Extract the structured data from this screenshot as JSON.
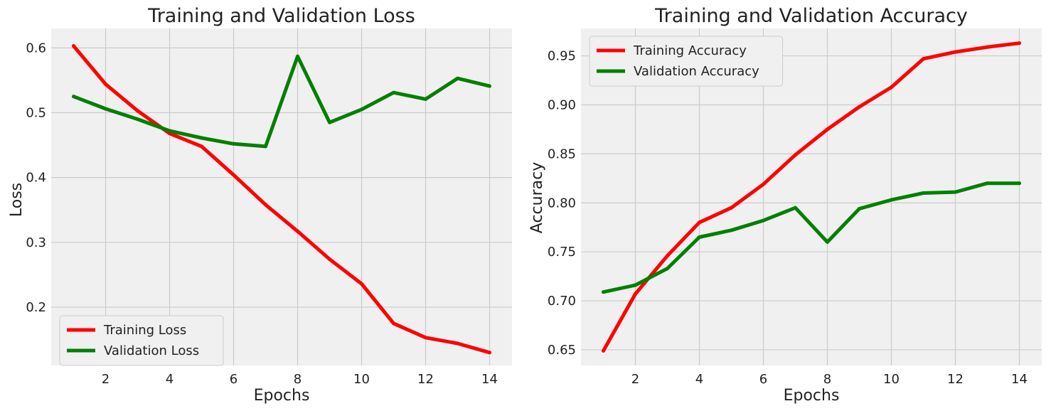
{
  "chart_data": [
    {
      "type": "line",
      "title": "Training and Validation Loss",
      "xlabel": "Epochs",
      "ylabel": "Loss",
      "xlim": [
        0.3,
        14.7
      ],
      "ylim": [
        0.11,
        0.63
      ],
      "xticks": [
        2,
        4,
        6,
        8,
        10,
        12,
        14
      ],
      "xtick_labels": [
        "2",
        "4",
        "6",
        "8",
        "10",
        "12",
        "14"
      ],
      "yticks": [
        0.2,
        0.3,
        0.4,
        0.5,
        0.6
      ],
      "ytick_labels": [
        "0.2",
        "0.3",
        "0.4",
        "0.5",
        "0.6"
      ],
      "grid": true,
      "legend_position": "lower-left",
      "x": [
        1,
        2,
        3,
        4,
        5,
        6,
        7,
        8,
        9,
        10,
        11,
        12,
        13,
        14
      ],
      "series": [
        {
          "name": "Training Loss",
          "color": "#ff0000",
          "values": [
            0.603,
            0.544,
            0.503,
            0.468,
            0.448,
            0.404,
            0.358,
            0.317,
            0.274,
            0.236,
            0.175,
            0.153,
            0.144,
            0.13
          ]
        },
        {
          "name": "Validation Loss",
          "color": "#008000",
          "values": [
            0.525,
            0.506,
            0.49,
            0.472,
            0.461,
            0.452,
            0.448,
            0.587,
            0.485,
            0.505,
            0.531,
            0.521,
            0.553,
            0.541
          ]
        }
      ]
    },
    {
      "type": "line",
      "title": "Training and Validation Accuracy",
      "xlabel": "Epochs",
      "ylabel": "Accuracy",
      "xlim": [
        0.3,
        14.7
      ],
      "ylim": [
        0.634,
        0.978
      ],
      "xticks": [
        2,
        4,
        6,
        8,
        10,
        12,
        14
      ],
      "xtick_labels": [
        "2",
        "4",
        "6",
        "8",
        "10",
        "12",
        "14"
      ],
      "yticks": [
        0.65,
        0.7,
        0.75,
        0.8,
        0.85,
        0.9,
        0.95
      ],
      "ytick_labels": [
        "0.65",
        "0.70",
        "0.75",
        "0.80",
        "0.85",
        "0.90",
        "0.95"
      ],
      "grid": true,
      "legend_position": "upper-left",
      "x": [
        1,
        2,
        3,
        4,
        5,
        6,
        7,
        8,
        9,
        10,
        11,
        12,
        13,
        14
      ],
      "series": [
        {
          "name": "Training Accuracy",
          "color": "#ff0000",
          "values": [
            0.649,
            0.707,
            0.746,
            0.78,
            0.795,
            0.819,
            0.849,
            0.875,
            0.898,
            0.918,
            0.947,
            0.954,
            0.959,
            0.963
          ]
        },
        {
          "name": "Validation Accuracy",
          "color": "#008000",
          "values": [
            0.709,
            0.716,
            0.733,
            0.765,
            0.772,
            0.782,
            0.795,
            0.76,
            0.794,
            0.803,
            0.81,
            0.811,
            0.82,
            0.82
          ]
        }
      ]
    }
  ]
}
